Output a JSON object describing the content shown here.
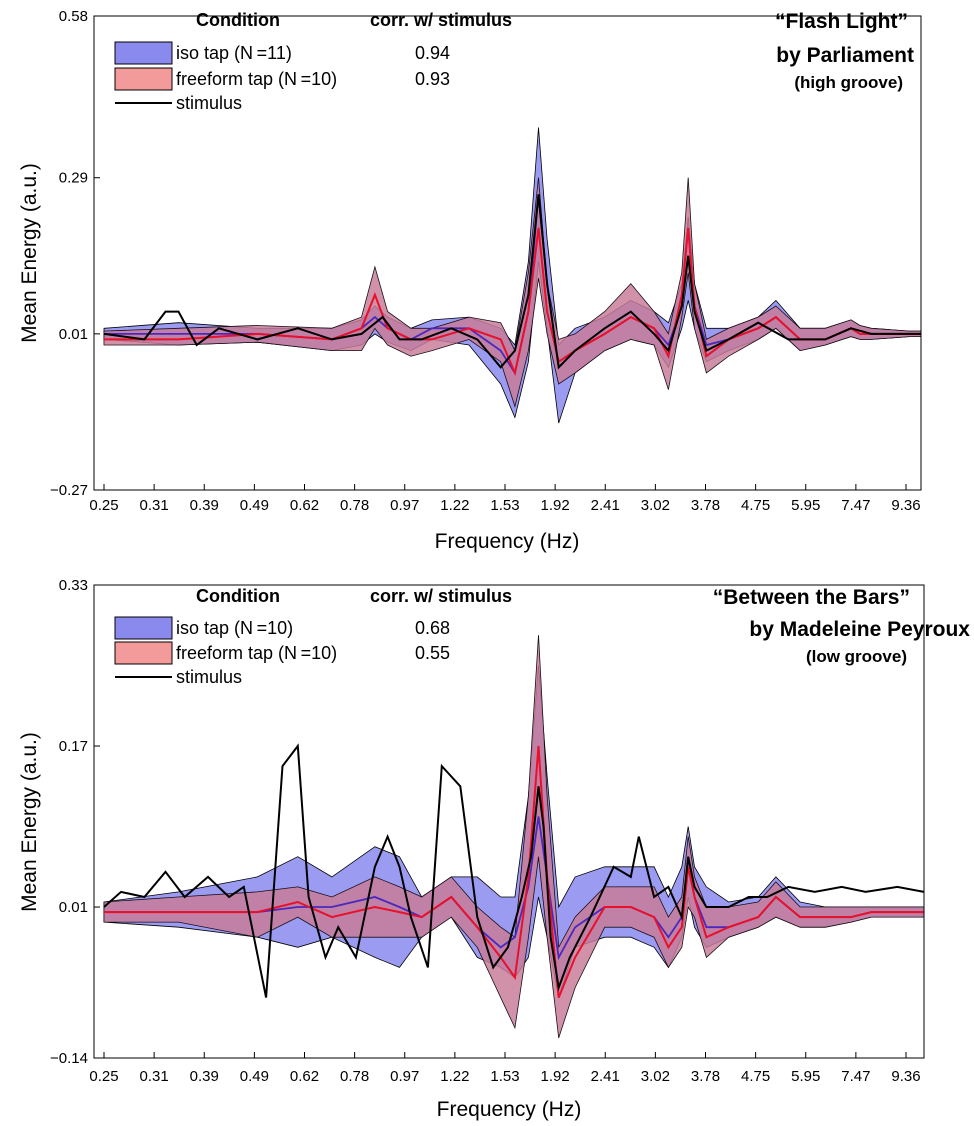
{
  "colors": {
    "iso_fill": "#8a8aee",
    "iso_line": "#4a28c0",
    "freeform_fill": "#f39a9a",
    "freeform_line": "#e8102a",
    "overlap_fill": "#8c5494",
    "stimulus": "#000000"
  },
  "chart_data": [
    {
      "type": "area",
      "title": "“Flash Light”",
      "subtitle": "by Parliament",
      "subtitle2": "(high groove)",
      "xlabel": "Frequency (Hz)",
      "ylabel": "Mean Energy (a.u.)",
      "ylim": [
        -0.27,
        0.58
      ],
      "yticks": [
        "0.58",
        "0.29",
        "0.01",
        "−0.27"
      ],
      "ytick_values": [
        0.58,
        0.29,
        0.01,
        -0.27
      ],
      "x_tick_labels": [
        "0.25",
        "0.31",
        "0.39",
        "0.49",
        "0.62",
        "0.78",
        "0.97",
        "1.22",
        "1.53",
        "1.92",
        "2.41",
        "3.02",
        "3.78",
        "4.75",
        "5.95",
        "7.47",
        "9.36"
      ],
      "x_scale": "log",
      "grid": false,
      "legend": {
        "position": "top-left",
        "header_condition": "Condition",
        "header_corr": "corr. w/ stimulus",
        "items": [
          {
            "label": "iso tap (N =11)",
            "corr": "0.94"
          },
          {
            "label": "freeform tap (N =10)",
            "corr": "0.93"
          },
          {
            "label": "stimulus",
            "corr": ""
          }
        ]
      },
      "series": [
        {
          "name": "iso tap (N =11)",
          "x": [
            0.25,
            0.35,
            0.5,
            0.7,
            0.8,
            0.85,
            0.9,
            1.0,
            1.1,
            1.3,
            1.5,
            1.6,
            1.7,
            1.78,
            1.85,
            1.95,
            2.1,
            2.4,
            2.7,
            3.0,
            3.2,
            3.4,
            3.5,
            3.6,
            3.8,
            4.2,
            4.8,
            5.2,
            5.8,
            6.5,
            7.3,
            7.6,
            8.0,
            9.5,
            10.3
          ],
          "mean": [
            0.01,
            0.01,
            0.01,
            0.0,
            0.02,
            0.04,
            0.02,
            0.0,
            0.02,
            0.02,
            -0.02,
            -0.06,
            0.05,
            0.26,
            0.1,
            -0.05,
            -0.02,
            0.01,
            0.04,
            0.02,
            -0.01,
            0.06,
            0.15,
            0.06,
            -0.01,
            0.0,
            0.02,
            0.04,
            0.0,
            0.0,
            0.02,
            0.01,
            0.01,
            0.01,
            0.01
          ],
          "upper": [
            0.02,
            0.03,
            0.02,
            0.02,
            0.035,
            0.06,
            0.04,
            0.02,
            0.035,
            0.04,
            0.02,
            -0.01,
            0.14,
            0.38,
            0.18,
            -0.01,
            0.02,
            0.04,
            0.07,
            0.05,
            0.03,
            0.1,
            0.22,
            0.1,
            0.02,
            0.02,
            0.04,
            0.07,
            0.02,
            0.02,
            0.035,
            0.025,
            0.02,
            0.015,
            0.015
          ],
          "lower": [
            0.0,
            -0.01,
            -0.005,
            -0.02,
            -0.01,
            0.01,
            -0.005,
            -0.02,
            0.0,
            -0.01,
            -0.08,
            -0.14,
            -0.04,
            0.14,
            0.02,
            -0.15,
            -0.06,
            -0.02,
            0.0,
            -0.01,
            -0.05,
            0.02,
            0.07,
            0.02,
            -0.04,
            -0.02,
            0.0,
            0.02,
            -0.02,
            -0.01,
            0.005,
            0.0,
            0.0,
            0.005,
            0.005
          ]
        },
        {
          "name": "freeform tap (N =10)",
          "x": [
            0.25,
            0.35,
            0.5,
            0.7,
            0.8,
            0.85,
            0.9,
            1.0,
            1.1,
            1.3,
            1.5,
            1.6,
            1.7,
            1.78,
            1.85,
            1.95,
            2.1,
            2.4,
            2.7,
            3.0,
            3.2,
            3.4,
            3.5,
            3.6,
            3.8,
            4.2,
            4.8,
            5.2,
            5.8,
            6.5,
            7.3,
            7.6,
            8.0,
            9.5,
            10.3
          ],
          "mean": [
            0.0,
            0.0,
            0.01,
            0.0,
            0.02,
            0.08,
            0.02,
            0.0,
            0.0,
            0.02,
            0.0,
            -0.06,
            0.05,
            0.2,
            0.05,
            -0.04,
            -0.02,
            0.01,
            0.04,
            0.02,
            -0.03,
            0.08,
            0.2,
            0.06,
            -0.03,
            0.0,
            0.02,
            0.04,
            0.0,
            0.0,
            0.02,
            0.01,
            0.01,
            0.01,
            0.01
          ],
          "upper": [
            0.015,
            0.02,
            0.025,
            0.02,
            0.04,
            0.13,
            0.05,
            0.02,
            0.02,
            0.04,
            0.03,
            -0.02,
            0.12,
            0.29,
            0.1,
            0.0,
            0.01,
            0.05,
            0.1,
            0.05,
            0.01,
            0.12,
            0.29,
            0.1,
            0.0,
            0.02,
            0.04,
            0.06,
            0.02,
            0.02,
            0.035,
            0.025,
            0.02,
            0.015,
            0.015
          ],
          "lower": [
            -0.01,
            -0.01,
            -0.005,
            -0.02,
            -0.02,
            0.02,
            -0.01,
            -0.03,
            -0.02,
            0.0,
            -0.04,
            -0.12,
            -0.02,
            0.11,
            0.01,
            -0.08,
            -0.06,
            -0.02,
            0.0,
            -0.01,
            -0.09,
            0.04,
            0.12,
            0.02,
            -0.06,
            -0.03,
            0.0,
            0.02,
            -0.02,
            -0.01,
            0.005,
            0.0,
            0.0,
            0.005,
            0.005
          ]
        },
        {
          "name": "stimulus",
          "x": [
            0.25,
            0.3,
            0.33,
            0.35,
            0.38,
            0.42,
            0.5,
            0.6,
            0.7,
            0.8,
            0.88,
            0.95,
            1.05,
            1.2,
            1.35,
            1.5,
            1.6,
            1.7,
            1.78,
            1.85,
            1.95,
            2.1,
            2.4,
            2.7,
            3.0,
            3.2,
            3.4,
            3.5,
            3.6,
            3.8,
            4.2,
            4.8,
            5.5,
            6.5,
            7.3,
            8.0,
            9.5,
            10.3
          ],
          "values": [
            0.01,
            0.0,
            0.05,
            0.05,
            -0.01,
            0.02,
            0.0,
            0.02,
            0.0,
            0.01,
            0.04,
            0.0,
            0.0,
            0.02,
            0.0,
            -0.05,
            -0.02,
            0.08,
            0.26,
            0.1,
            -0.05,
            -0.02,
            0.02,
            0.05,
            0.01,
            -0.02,
            0.06,
            0.15,
            0.05,
            -0.02,
            0.0,
            0.03,
            0.0,
            0.0,
            0.02,
            0.01,
            0.01,
            0.01
          ]
        }
      ]
    },
    {
      "type": "area",
      "title": "“Between the Bars”",
      "subtitle": "by Madeleine Peyroux",
      "subtitle2": "(low groove)",
      "xlabel": "Frequency (Hz)",
      "ylabel": "Mean Energy (a.u.)",
      "ylim": [
        -0.14,
        0.33
      ],
      "yticks": [
        "0.33",
        "0.17",
        "0.01",
        "−0.14"
      ],
      "ytick_values": [
        0.33,
        0.17,
        0.01,
        -0.14
      ],
      "x_tick_labels": [
        "0.25",
        "0.31",
        "0.39",
        "0.49",
        "0.62",
        "0.78",
        "0.97",
        "1.22",
        "1.53",
        "1.92",
        "2.41",
        "3.02",
        "3.78",
        "4.75",
        "5.95",
        "7.47",
        "9.36"
      ],
      "x_scale": "log",
      "grid": false,
      "legend": {
        "position": "top-left",
        "header_condition": "Condition",
        "header_corr": "corr. w/ stimulus",
        "items": [
          {
            "label": "iso tap (N =10)",
            "corr": "0.68"
          },
          {
            "label": "freeform tap (N =10)",
            "corr": "0.55"
          },
          {
            "label": "stimulus",
            "corr": ""
          }
        ]
      },
      "series": [
        {
          "name": "iso tap (N =10)",
          "x": [
            0.25,
            0.35,
            0.5,
            0.6,
            0.7,
            0.85,
            0.95,
            1.05,
            1.2,
            1.35,
            1.5,
            1.6,
            1.7,
            1.78,
            1.85,
            1.95,
            2.1,
            2.4,
            2.7,
            3.0,
            3.2,
            3.4,
            3.5,
            3.6,
            3.8,
            4.2,
            4.8,
            5.2,
            5.8,
            6.5,
            7.3,
            8.0,
            9.5,
            10.3
          ],
          "mean": [
            0.005,
            0.005,
            0.005,
            0.01,
            0.01,
            0.02,
            0.01,
            0.0,
            0.02,
            -0.01,
            -0.03,
            -0.02,
            0.03,
            0.1,
            0.04,
            -0.04,
            -0.01,
            0.01,
            0.01,
            0.0,
            -0.02,
            0.0,
            0.06,
            0.02,
            -0.01,
            -0.01,
            0.0,
            0.02,
            0.0,
            0.0,
            0.0,
            0.005,
            0.005,
            0.005
          ],
          "upper": [
            0.015,
            0.025,
            0.04,
            0.06,
            0.04,
            0.07,
            0.06,
            0.02,
            0.04,
            0.04,
            0.02,
            0.02,
            0.12,
            0.25,
            0.14,
            0.01,
            0.04,
            0.05,
            0.05,
            0.05,
            0.02,
            0.05,
            0.09,
            0.05,
            0.03,
            0.015,
            0.02,
            0.04,
            0.015,
            0.01,
            0.01,
            0.01,
            0.01,
            0.01
          ],
          "lower": [
            -0.005,
            -0.01,
            -0.02,
            -0.03,
            -0.02,
            -0.04,
            -0.05,
            -0.02,
            0.0,
            -0.04,
            -0.05,
            -0.06,
            -0.04,
            0.02,
            -0.02,
            -0.08,
            -0.03,
            -0.02,
            -0.02,
            -0.03,
            -0.05,
            -0.02,
            0.02,
            -0.01,
            -0.03,
            -0.02,
            -0.01,
            0.0,
            -0.01,
            -0.01,
            -0.005,
            0.0,
            0.0,
            0.0
          ]
        },
        {
          "name": "freeform tap (N =10)",
          "x": [
            0.25,
            0.35,
            0.5,
            0.6,
            0.7,
            0.85,
            0.95,
            1.05,
            1.2,
            1.35,
            1.5,
            1.6,
            1.7,
            1.78,
            1.85,
            1.95,
            2.1,
            2.4,
            2.7,
            3.0,
            3.2,
            3.4,
            3.5,
            3.6,
            3.8,
            4.2,
            4.8,
            5.2,
            5.8,
            6.5,
            7.3,
            8.0,
            9.5,
            10.3
          ],
          "mean": [
            0.005,
            0.005,
            0.005,
            0.015,
            0.0,
            0.01,
            0.005,
            0.0,
            0.02,
            -0.01,
            -0.04,
            -0.06,
            0.04,
            0.17,
            0.04,
            -0.08,
            -0.04,
            0.01,
            0.01,
            0.0,
            -0.03,
            -0.01,
            0.05,
            0.02,
            -0.02,
            -0.01,
            0.0,
            0.02,
            0.0,
            0.0,
            0.0,
            0.005,
            0.005,
            0.005
          ],
          "upper": [
            0.015,
            0.02,
            0.025,
            0.03,
            0.02,
            0.04,
            0.03,
            0.02,
            0.04,
            0.01,
            -0.01,
            -0.02,
            0.12,
            0.28,
            0.12,
            -0.03,
            0.0,
            0.03,
            0.03,
            0.03,
            0.0,
            0.02,
            0.08,
            0.04,
            0.01,
            0.01,
            0.015,
            0.035,
            0.01,
            0.01,
            0.01,
            0.01,
            0.01,
            0.01
          ],
          "lower": [
            -0.005,
            -0.005,
            -0.02,
            0.0,
            -0.02,
            -0.02,
            -0.02,
            -0.02,
            0.0,
            -0.03,
            -0.08,
            -0.11,
            -0.02,
            0.06,
            -0.02,
            -0.12,
            -0.07,
            -0.01,
            -0.01,
            -0.02,
            -0.05,
            -0.03,
            0.01,
            0.0,
            -0.04,
            -0.02,
            -0.01,
            0.0,
            -0.01,
            -0.01,
            -0.005,
            0.0,
            0.0,
            0.0
          ]
        },
        {
          "name": "stimulus",
          "x": [
            0.25,
            0.27,
            0.3,
            0.33,
            0.36,
            0.4,
            0.44,
            0.47,
            0.52,
            0.56,
            0.6,
            0.63,
            0.68,
            0.72,
            0.78,
            0.85,
            0.9,
            0.95,
            1.0,
            1.08,
            1.15,
            1.25,
            1.35,
            1.45,
            1.55,
            1.65,
            1.72,
            1.78,
            1.82,
            1.88,
            1.95,
            2.05,
            2.25,
            2.5,
            2.7,
            2.8,
            3.0,
            3.2,
            3.4,
            3.5,
            3.6,
            3.8,
            4.2,
            4.6,
            5.0,
            5.5,
            6.2,
            7.0,
            7.8,
            9.0,
            10.3
          ],
          "values": [
            0.01,
            0.025,
            0.02,
            0.045,
            0.02,
            0.04,
            0.02,
            0.03,
            -0.08,
            0.15,
            0.17,
            0.02,
            -0.04,
            -0.01,
            -0.04,
            0.05,
            0.08,
            0.05,
            0.0,
            -0.05,
            0.15,
            0.13,
            0.0,
            -0.05,
            -0.03,
            0.02,
            0.06,
            0.13,
            0.09,
            -0.02,
            -0.07,
            -0.04,
            0.0,
            0.05,
            0.04,
            0.08,
            0.02,
            0.03,
            0.0,
            0.06,
            0.03,
            0.01,
            0.01,
            0.02,
            0.02,
            0.03,
            0.025,
            0.03,
            0.025,
            0.03,
            0.025
          ]
        }
      ]
    }
  ]
}
